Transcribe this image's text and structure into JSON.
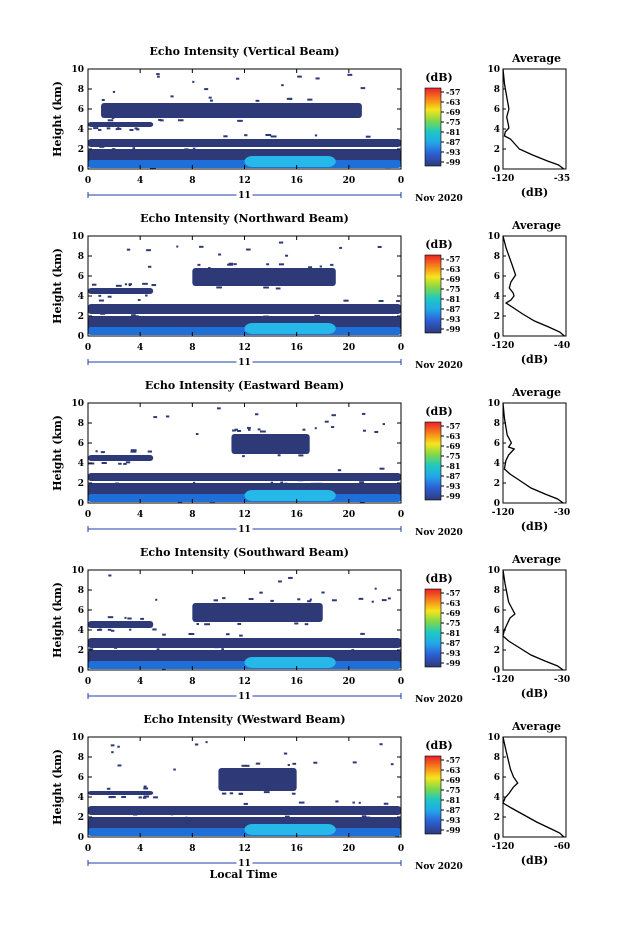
{
  "figure": {
    "xlabel": "Local Time",
    "date_label": "Nov 2020",
    "day_label": "11",
    "colorbar_unit": "(dB)",
    "colorbar_ticks": [
      "-57",
      "-63",
      "-69",
      "-75",
      "-81",
      "-87",
      "-93",
      "-99"
    ],
    "avg_xlabel": "(dB)",
    "colors": {
      "background": "#ffffff",
      "echo_low": "#2e3a78",
      "echo_mid": "#1e6fd8",
      "echo_high": "#25b8e8",
      "day_axis": "#1f3fa8"
    }
  },
  "chart_data": [
    {
      "type": "heatmap",
      "title": "Echo Intensity (Vertical Beam)",
      "ylabel": "Height (km)",
      "xlim": [
        0,
        24
      ],
      "ylim": [
        0,
        10
      ],
      "xticks": [
        "0",
        "4",
        "8",
        "12",
        "16",
        "20",
        "0"
      ],
      "yticks": [
        "0",
        "2",
        "4",
        "6",
        "8",
        "10"
      ],
      "layers": [
        {
          "x": [
            0,
            24
          ],
          "y": [
            0.3,
            2.0
          ],
          "level": "low"
        },
        {
          "x": [
            0,
            24
          ],
          "y": [
            2.2,
            3.0
          ],
          "level": "low"
        },
        {
          "x": [
            0,
            5
          ],
          "y": [
            4.2,
            4.7
          ],
          "level": "low"
        },
        {
          "x": [
            1,
            21
          ],
          "y": [
            5.1,
            6.6
          ],
          "level": "low"
        },
        {
          "x": [
            0,
            24
          ],
          "y": [
            0.1,
            0.9
          ],
          "level": "mid"
        },
        {
          "x": [
            12,
            19
          ],
          "y": [
            0.2,
            1.3
          ],
          "level": "high"
        }
      ],
      "average_profile": {
        "title": "Average",
        "xlim": [
          -120,
          -35
        ],
        "xticks": [
          "-120",
          "-35"
        ],
        "yticks": [
          "0",
          "2",
          "4",
          "6",
          "8",
          "10"
        ],
        "x": [
          -120,
          -118,
          -112,
          -115,
          -113,
          -112,
          -117,
          -118,
          -110,
          -104,
          -98,
          -80,
          -60,
          -45,
          -38
        ],
        "y": [
          10,
          8.5,
          6,
          5.2,
          4.5,
          4.1,
          3.7,
          3.3,
          3.0,
          2.5,
          2.0,
          1.4,
          0.8,
          0.4,
          0
        ]
      }
    },
    {
      "type": "heatmap",
      "title": "Echo Intensity (Northward Beam)",
      "ylabel": "Height (km)",
      "xlim": [
        0,
        24
      ],
      "ylim": [
        0,
        10
      ],
      "xticks": [
        "0",
        "4",
        "8",
        "12",
        "16",
        "20",
        "0"
      ],
      "yticks": [
        "0",
        "2",
        "4",
        "6",
        "8",
        "10"
      ],
      "layers": [
        {
          "x": [
            0,
            24
          ],
          "y": [
            0.3,
            2.0
          ],
          "level": "low"
        },
        {
          "x": [
            0,
            24
          ],
          "y": [
            2.2,
            3.2
          ],
          "level": "low"
        },
        {
          "x": [
            0,
            5
          ],
          "y": [
            4.2,
            4.8
          ],
          "level": "low"
        },
        {
          "x": [
            8,
            19
          ],
          "y": [
            5.0,
            6.8
          ],
          "level": "low"
        },
        {
          "x": [
            0,
            24
          ],
          "y": [
            0.1,
            0.9
          ],
          "level": "mid"
        },
        {
          "x": [
            12,
            19
          ],
          "y": [
            0.2,
            1.3
          ],
          "level": "high"
        }
      ],
      "average_profile": {
        "title": "Average",
        "xlim": [
          -120,
          -40
        ],
        "xticks": [
          "-120",
          "-40"
        ],
        "yticks": [
          "0",
          "2",
          "4",
          "6",
          "8",
          "10"
        ],
        "x": [
          -120,
          -116,
          -108,
          -104,
          -110,
          -112,
          -107,
          -106,
          -110,
          -116,
          -95,
          -80,
          -62,
          -48,
          -42
        ],
        "y": [
          10,
          8.8,
          7,
          6.1,
          5.4,
          4.8,
          4.3,
          4.0,
          3.6,
          3.3,
          2.2,
          1.5,
          0.9,
          0.4,
          0
        ]
      }
    },
    {
      "type": "heatmap",
      "title": "Echo Intensity (Eastward Beam)",
      "ylabel": "Height (km)",
      "xlim": [
        0,
        24
      ],
      "ylim": [
        0,
        10
      ],
      "xticks": [
        "0",
        "4",
        "8",
        "12",
        "16",
        "20",
        "0"
      ],
      "yticks": [
        "0",
        "2",
        "4",
        "6",
        "8",
        "10"
      ],
      "layers": [
        {
          "x": [
            0,
            24
          ],
          "y": [
            0.3,
            2.0
          ],
          "level": "low"
        },
        {
          "x": [
            0,
            24
          ],
          "y": [
            2.2,
            3.0
          ],
          "level": "low"
        },
        {
          "x": [
            0,
            5
          ],
          "y": [
            4.2,
            4.8
          ],
          "level": "low"
        },
        {
          "x": [
            11,
            17
          ],
          "y": [
            4.9,
            6.9
          ],
          "level": "low"
        },
        {
          "x": [
            0,
            24
          ],
          "y": [
            0.1,
            0.9
          ],
          "level": "mid"
        },
        {
          "x": [
            12,
            19
          ],
          "y": [
            0.2,
            1.3
          ],
          "level": "high"
        }
      ],
      "average_profile": {
        "title": "Average",
        "xlim": [
          -120,
          -30
        ],
        "xticks": [
          "-120",
          "-30"
        ],
        "yticks": [
          "0",
          "2",
          "4",
          "6",
          "8",
          "10"
        ],
        "x": [
          -120,
          -118,
          -114,
          -108,
          -112,
          -104,
          -112,
          -116,
          -118,
          -110,
          -95,
          -80,
          -60,
          -42,
          -34
        ],
        "y": [
          10,
          8.5,
          6.8,
          6.0,
          5.6,
          5.4,
          4.8,
          4.2,
          3.4,
          2.9,
          2.2,
          1.5,
          0.9,
          0.4,
          0
        ]
      }
    },
    {
      "type": "heatmap",
      "title": "Echo Intensity (Southward Beam)",
      "ylabel": "Height (km)",
      "xlim": [
        0,
        24
      ],
      "ylim": [
        0,
        10
      ],
      "xticks": [
        "0",
        "4",
        "8",
        "12",
        "16",
        "20",
        "0"
      ],
      "yticks": [
        "0",
        "2",
        "4",
        "6",
        "8",
        "10"
      ],
      "layers": [
        {
          "x": [
            0,
            24
          ],
          "y": [
            0.3,
            2.0
          ],
          "level": "low"
        },
        {
          "x": [
            0,
            24
          ],
          "y": [
            2.2,
            3.2
          ],
          "level": "low"
        },
        {
          "x": [
            0,
            5
          ],
          "y": [
            4.2,
            4.9
          ],
          "level": "low"
        },
        {
          "x": [
            8,
            18
          ],
          "y": [
            4.8,
            6.7
          ],
          "level": "low"
        },
        {
          "x": [
            0,
            24
          ],
          "y": [
            0.1,
            0.9
          ],
          "level": "mid"
        },
        {
          "x": [
            12,
            19
          ],
          "y": [
            0.2,
            1.3
          ],
          "level": "high"
        }
      ],
      "average_profile": {
        "title": "Average",
        "xlim": [
          -120,
          -30
        ],
        "xticks": [
          "-120",
          "-30"
        ],
        "yticks": [
          "0",
          "2",
          "4",
          "6",
          "8",
          "10"
        ],
        "x": [
          -120,
          -117,
          -112,
          -106,
          -103,
          -110,
          -114,
          -118,
          -120,
          -112,
          -96,
          -80,
          -60,
          -42,
          -34
        ],
        "y": [
          10,
          8.6,
          6.8,
          6.0,
          5.6,
          5.2,
          4.6,
          4.0,
          3.4,
          2.9,
          2.2,
          1.5,
          0.9,
          0.4,
          0
        ]
      }
    },
    {
      "type": "heatmap",
      "title": "Echo Intensity (Westward Beam)",
      "ylabel": "Height (km)",
      "xlim": [
        0,
        24
      ],
      "ylim": [
        0,
        10
      ],
      "xticks": [
        "0",
        "4",
        "8",
        "12",
        "16",
        "20",
        "0"
      ],
      "yticks": [
        "0",
        "2",
        "4",
        "6",
        "8",
        "10"
      ],
      "layers": [
        {
          "x": [
            0,
            24
          ],
          "y": [
            0.3,
            2.0
          ],
          "level": "low"
        },
        {
          "x": [
            0,
            24
          ],
          "y": [
            2.2,
            3.1
          ],
          "level": "low"
        },
        {
          "x": [
            0,
            5
          ],
          "y": [
            4.2,
            4.6
          ],
          "level": "low"
        },
        {
          "x": [
            10,
            16
          ],
          "y": [
            4.6,
            6.9
          ],
          "level": "low"
        },
        {
          "x": [
            0,
            24
          ],
          "y": [
            0.1,
            0.9
          ],
          "level": "mid"
        },
        {
          "x": [
            12,
            19
          ],
          "y": [
            0.2,
            1.3
          ],
          "level": "high"
        }
      ],
      "average_profile": {
        "title": "Average",
        "xlim": [
          -120,
          -60
        ],
        "xticks": [
          "-120",
          "-60"
        ],
        "yticks": [
          "0",
          "2",
          "4",
          "6",
          "8",
          "10"
        ],
        "x": [
          -120,
          -117,
          -113,
          -110,
          -106,
          -110,
          -114,
          -118,
          -120,
          -112,
          -100,
          -88,
          -76,
          -66,
          -62
        ],
        "y": [
          10,
          8.6,
          6.8,
          6.0,
          5.4,
          5.0,
          4.4,
          3.9,
          3.4,
          2.9,
          2.2,
          1.5,
          0.9,
          0.4,
          0
        ]
      }
    }
  ]
}
